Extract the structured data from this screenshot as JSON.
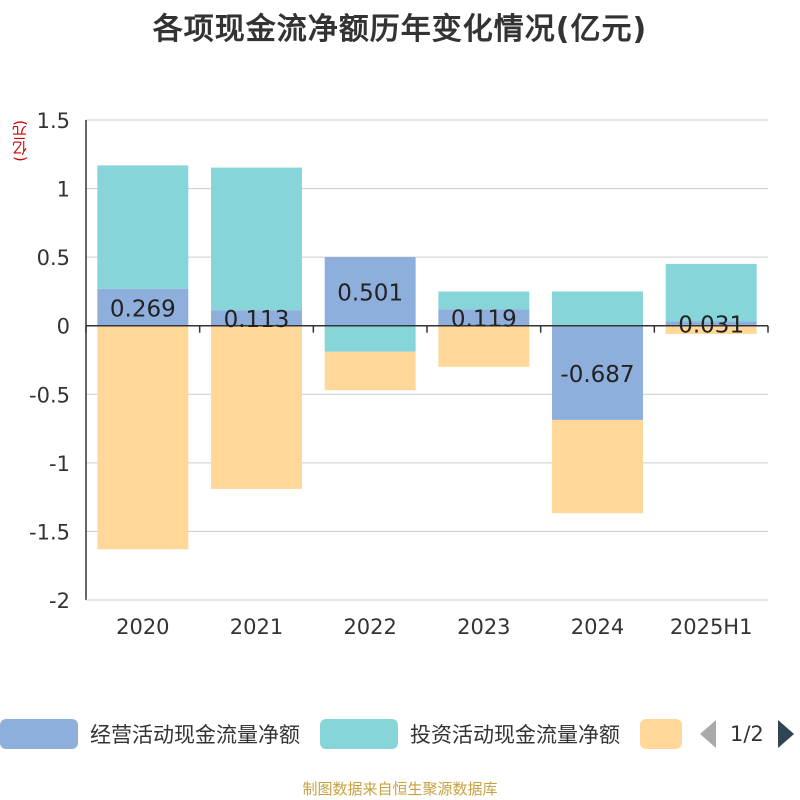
{
  "title": "各项现金流净额历年变化情况(亿元)",
  "unit_label": "(亿元)",
  "source": "制图数据来自恒生聚源数据库",
  "legend": {
    "items": [
      {
        "label": "经营活动现金流量净额",
        "color": "#8eaedc"
      },
      {
        "label": "投资活动现金流量净额",
        "color": "#86d5d8"
      },
      {
        "label": "",
        "color": "#ffd899"
      }
    ],
    "pager": "1/2"
  },
  "chart_data": {
    "type": "bar",
    "stacked": true,
    "categories": [
      "2020",
      "2021",
      "2022",
      "2023",
      "2024",
      "2025H1"
    ],
    "ylim": [
      -2,
      1.5
    ],
    "yticks": [
      1.5,
      1,
      0.5,
      0,
      -0.5,
      -1,
      -1.5,
      -2
    ],
    "ytick_labels": [
      "1.5",
      "1",
      "0.5",
      "0",
      "-0.5",
      "-1",
      "-1.5",
      "-2"
    ],
    "grid": true,
    "series": [
      {
        "name": "经营活动现金流量净额",
        "color": "#8eaedc",
        "values": [
          0.269,
          0.113,
          0.501,
          0.119,
          -0.687,
          0.031
        ],
        "labels": [
          "0.269",
          "0.113",
          "0.501",
          "0.119",
          "-0.687",
          "0.031"
        ]
      },
      {
        "name": "投资活动现金流量净额",
        "color": "#86d5d8",
        "values": [
          0.9,
          1.04,
          -0.19,
          0.13,
          0.25,
          0.42
        ]
      },
      {
        "color": "#ffd899",
        "values": [
          -1.63,
          -1.19,
          -0.28,
          -0.3,
          -0.68,
          -0.06
        ]
      }
    ]
  }
}
